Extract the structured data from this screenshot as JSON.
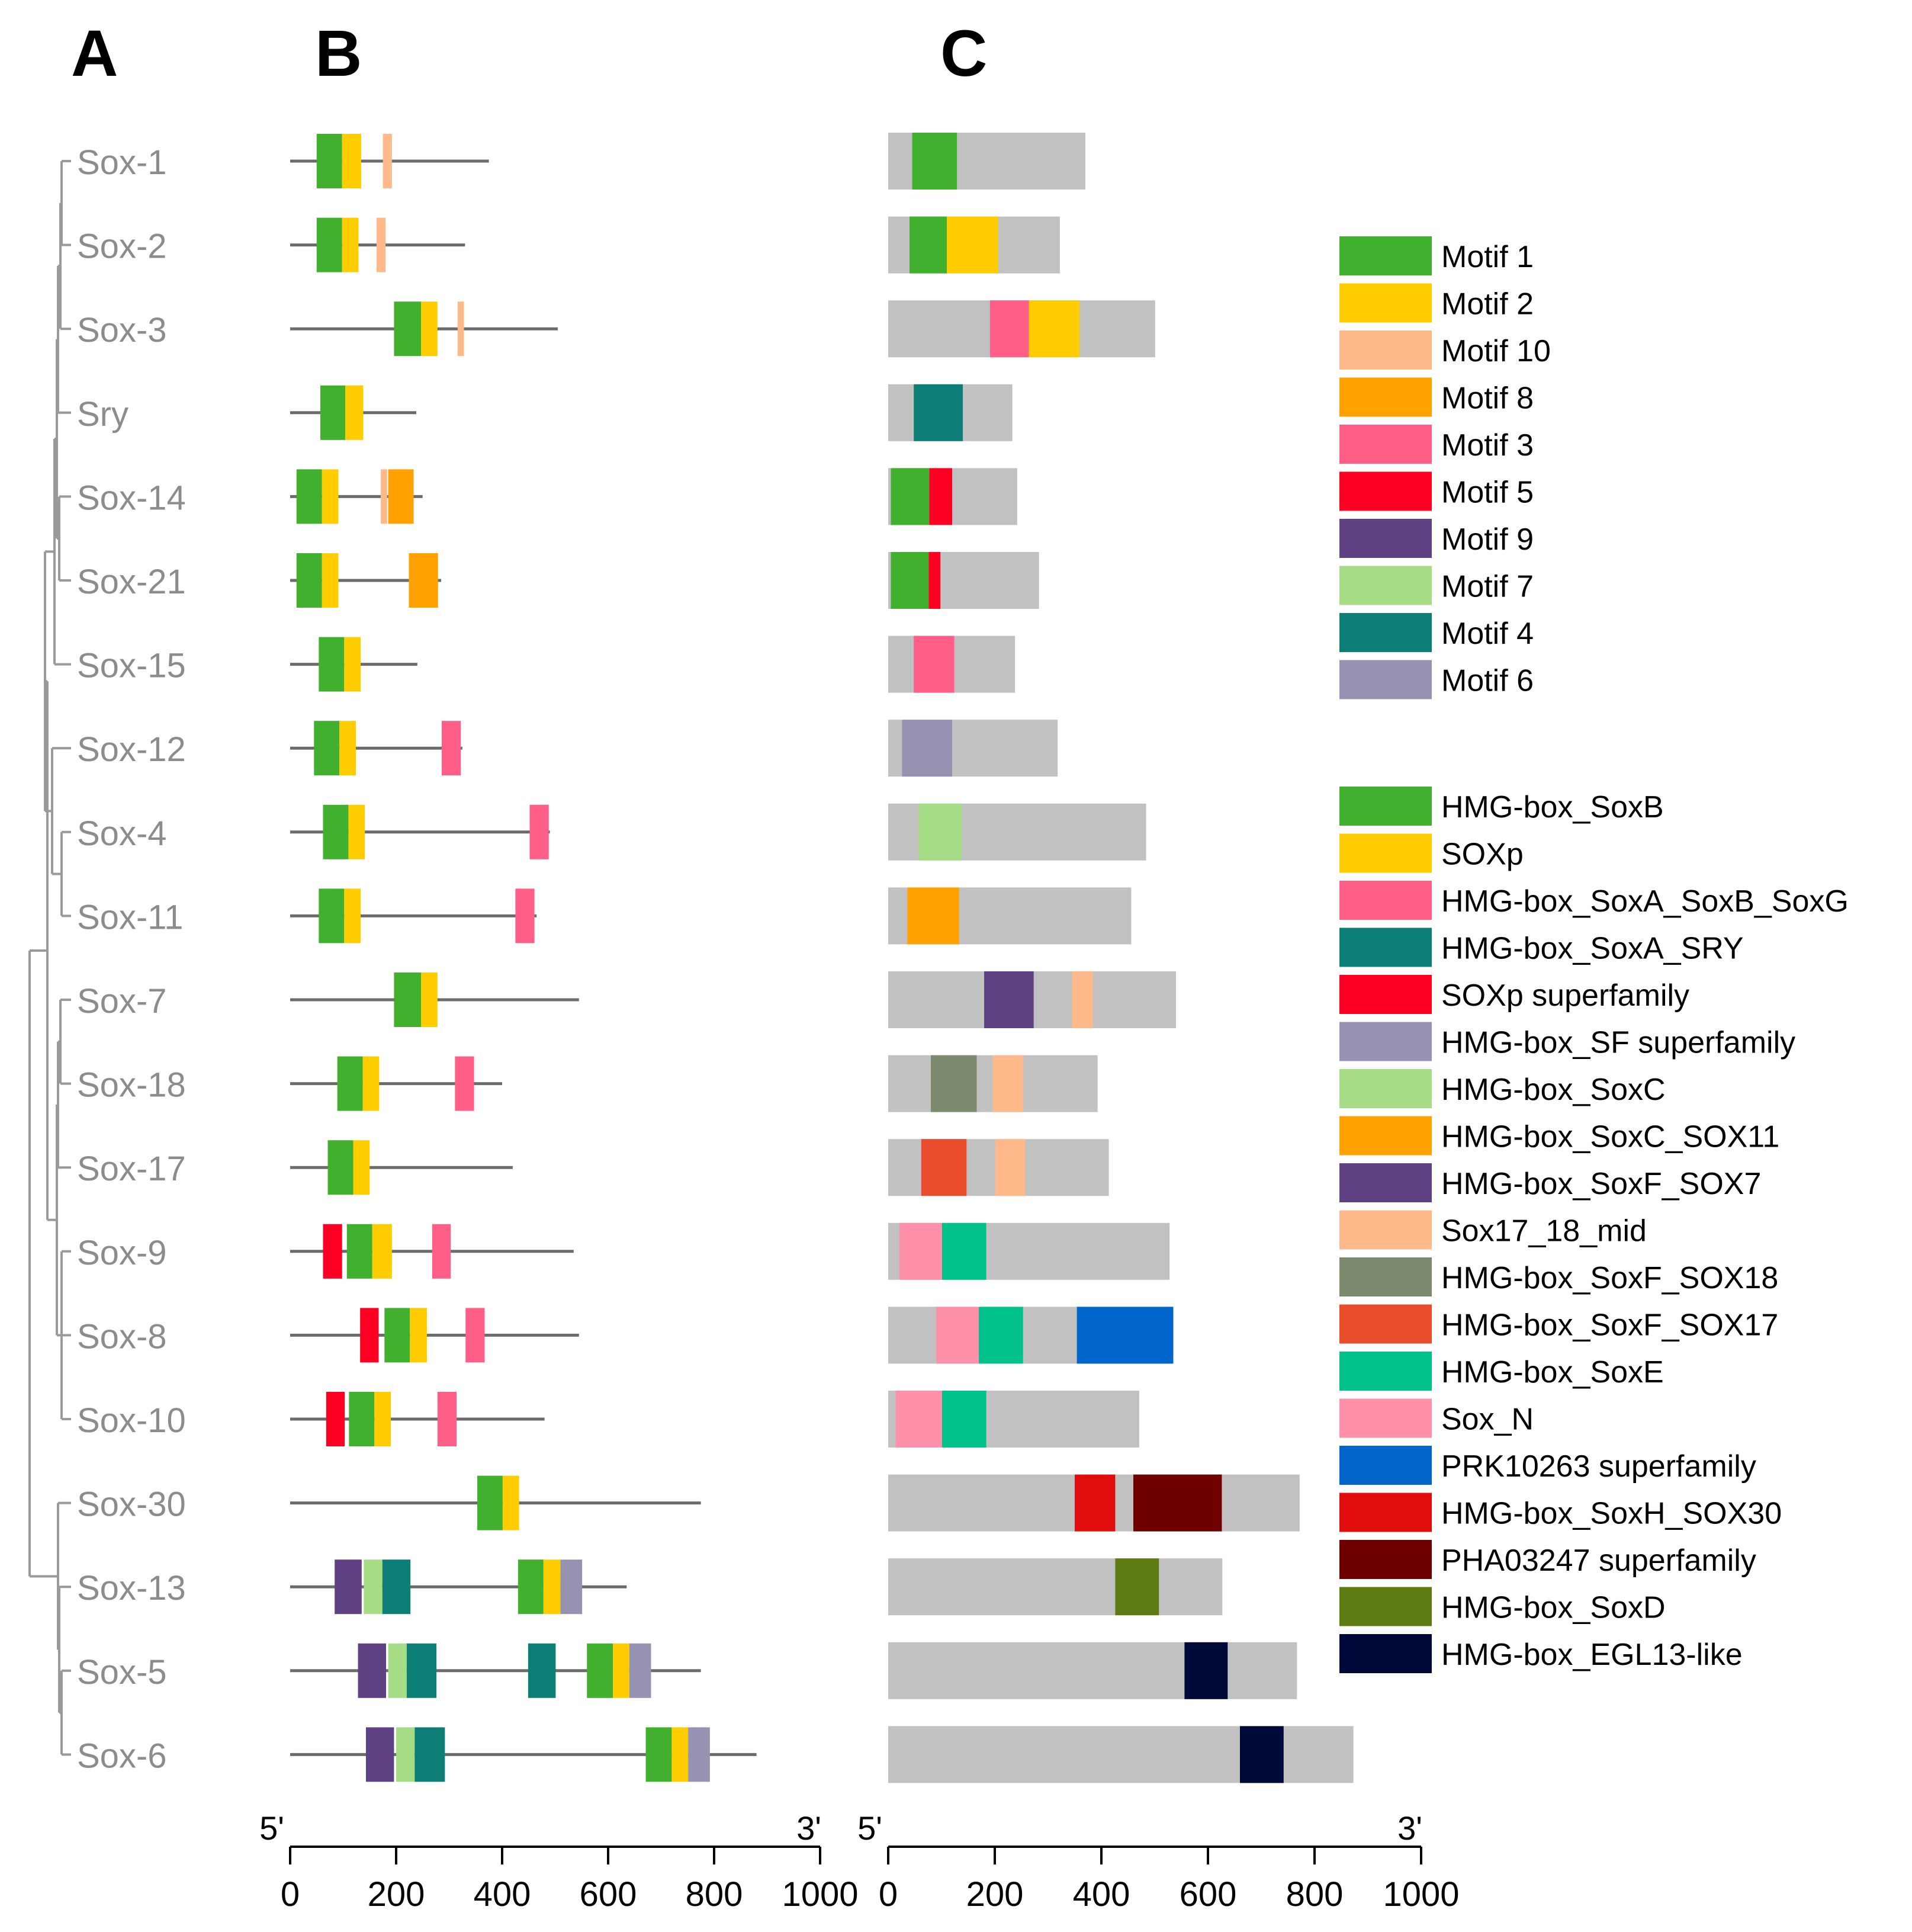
{
  "panels": {
    "a": "A",
    "b": "B",
    "c": "C"
  },
  "genes": [
    "Sox-1",
    "Sox-2",
    "Sox-3",
    "Sry",
    "Sox-14",
    "Sox-21",
    "Sox-15",
    "Sox-12",
    "Sox-4",
    "Sox-11",
    "Sox-7",
    "Sox-18",
    "Sox-17",
    "Sox-9",
    "Sox-8",
    "Sox-10",
    "Sox-30",
    "Sox-13",
    "Sox-5",
    "Sox-6"
  ],
  "colors": {
    "Motif 1": "#41b02f",
    "Motif 2": "#ffcc00",
    "Motif 10": "#ffb98a",
    "Motif 8": "#ffa100",
    "Motif 3": "#ff5e86",
    "Motif 5": "#ff0025",
    "Motif 9": "#5f4184",
    "Motif 7": "#a6dc86",
    "Motif 4": "#0d7e76",
    "Motif 6": "#9892b2",
    "HMG-box_SoxB": "#41b02f",
    "SOXp": "#ffcc00",
    "HMG-box_SoxA_SoxB_SoxG": "#ff5e86",
    "HMG-box_SoxA_SRY": "#0d7e76",
    "SOXp superfamily": "#ff0025",
    "HMG-box_SF superfamily": "#9892b2",
    "HMG-box_SoxC": "#a6dc86",
    "HMG-box_SoxC_SOX11": "#ffa100",
    "HMG-box_SoxF_SOX7": "#5f4184",
    "Sox17_18_mid": "#ffb98a",
    "HMG-box_SoxF_SOX18": "#7c8a6e",
    "HMG-box_SoxF_SOX17": "#ea4d2b",
    "HMG-box_SoxE": "#00c28a",
    "Sox_N": "#ff90aa",
    "PRK10263 superfamily": "#0066cc",
    "HMG-box_SoxH_SOX30": "#e10c0c",
    "PHA03247 superfamily": "#6e0000",
    "HMG-box_SoxD": "#5c7c13",
    "HMG-box_EGL13-like": "#000a38",
    "protein_bar": "#c1c1c1",
    "line": "#6b6b6b",
    "tree": "#9a9a9a",
    "gene_label": "#8c8c8c"
  },
  "motif_legend": [
    "Motif 1",
    "Motif 2",
    "Motif 10",
    "Motif 8",
    "Motif 3",
    "Motif 5",
    "Motif 9",
    "Motif 7",
    "Motif 4",
    "Motif 6"
  ],
  "domain_legend": [
    "HMG-box_SoxB",
    "SOXp",
    "HMG-box_SoxA_SoxB_SoxG",
    "HMG-box_SoxA_SRY",
    "SOXp superfamily",
    "HMG-box_SF superfamily",
    "HMG-box_SoxC",
    "HMG-box_SoxC_SOX11",
    "HMG-box_SoxF_SOX7",
    "Sox17_18_mid",
    "HMG-box_SoxF_SOX18",
    "HMG-box_SoxF_SOX17",
    "HMG-box_SoxE",
    "Sox_N",
    "PRK10263 superfamily",
    "HMG-box_SoxH_SOX30",
    "PHA03247 superfamily",
    "HMG-box_SoxD",
    "HMG-box_EGL13-like"
  ],
  "axis_b": {
    "ticks": [
      0,
      200,
      400,
      600,
      800,
      1000
    ],
    "left_label": "5'",
    "right_label": "3'"
  },
  "axis_c": {
    "ticks": [
      0,
      200,
      400,
      600,
      800,
      1000
    ],
    "left_label": "5'",
    "right_label": "3'"
  },
  "motif_tracks": [
    {
      "length": 375,
      "motifs": [
        {
          "name": "Motif 1",
          "start": 50,
          "end": 98
        },
        {
          "name": "Motif 2",
          "start": 98,
          "end": 134
        },
        {
          "name": "Motif 10",
          "start": 175,
          "end": 192
        }
      ]
    },
    {
      "length": 330,
      "motifs": [
        {
          "name": "Motif 1",
          "start": 50,
          "end": 98
        },
        {
          "name": "Motif 2",
          "start": 98,
          "end": 129
        },
        {
          "name": "Motif 10",
          "start": 163,
          "end": 180
        }
      ]
    },
    {
      "length": 505,
      "motifs": [
        {
          "name": "Motif 1",
          "start": 196,
          "end": 247
        },
        {
          "name": "Motif 2",
          "start": 247,
          "end": 278
        },
        {
          "name": "Motif 10",
          "start": 316,
          "end": 328
        }
      ]
    },
    {
      "length": 238,
      "motifs": [
        {
          "name": "Motif 1",
          "start": 57,
          "end": 104
        },
        {
          "name": "Motif 2",
          "start": 104,
          "end": 138
        }
      ]
    },
    {
      "length": 250,
      "motifs": [
        {
          "name": "Motif 1",
          "start": 12,
          "end": 60
        },
        {
          "name": "Motif 2",
          "start": 60,
          "end": 91
        },
        {
          "name": "Motif 10",
          "start": 171,
          "end": 183
        },
        {
          "name": "Motif 8",
          "start": 185,
          "end": 233
        }
      ]
    },
    {
      "length": 285,
      "motifs": [
        {
          "name": "Motif 1",
          "start": 12,
          "end": 60
        },
        {
          "name": "Motif 2",
          "start": 60,
          "end": 91
        },
        {
          "name": "Motif 8",
          "start": 224,
          "end": 279
        }
      ]
    },
    {
      "length": 240,
      "motifs": [
        {
          "name": "Motif 1",
          "start": 54,
          "end": 102
        },
        {
          "name": "Motif 2",
          "start": 102,
          "end": 133
        }
      ]
    },
    {
      "length": 325,
      "motifs": [
        {
          "name": "Motif 1",
          "start": 45,
          "end": 93
        },
        {
          "name": "Motif 2",
          "start": 93,
          "end": 124
        },
        {
          "name": "Motif 3",
          "start": 286,
          "end": 322
        }
      ]
    },
    {
      "length": 490,
      "motifs": [
        {
          "name": "Motif 1",
          "start": 62,
          "end": 110
        },
        {
          "name": "Motif 2",
          "start": 110,
          "end": 141
        },
        {
          "name": "Motif 3",
          "start": 452,
          "end": 488
        }
      ]
    },
    {
      "length": 465,
      "motifs": [
        {
          "name": "Motif 1",
          "start": 54,
          "end": 102
        },
        {
          "name": "Motif 2",
          "start": 102,
          "end": 133
        },
        {
          "name": "Motif 3",
          "start": 425,
          "end": 461
        }
      ]
    },
    {
      "length": 545,
      "motifs": [
        {
          "name": "Motif 1",
          "start": 196,
          "end": 247
        },
        {
          "name": "Motif 2",
          "start": 247,
          "end": 278
        }
      ]
    },
    {
      "length": 400,
      "motifs": [
        {
          "name": "Motif 1",
          "start": 89,
          "end": 137
        },
        {
          "name": "Motif 2",
          "start": 137,
          "end": 168
        },
        {
          "name": "Motif 3",
          "start": 311,
          "end": 347
        }
      ]
    },
    {
      "length": 420,
      "motifs": [
        {
          "name": "Motif 1",
          "start": 71,
          "end": 119
        },
        {
          "name": "Motif 2",
          "start": 119,
          "end": 150
        }
      ]
    },
    {
      "length": 535,
      "motifs": [
        {
          "name": "Motif 5",
          "start": 62,
          "end": 98
        },
        {
          "name": "Motif 1",
          "start": 107,
          "end": 155
        },
        {
          "name": "Motif 2",
          "start": 155,
          "end": 192
        },
        {
          "name": "Motif 3",
          "start": 268,
          "end": 303
        }
      ]
    },
    {
      "length": 545,
      "motifs": [
        {
          "name": "Motif 5",
          "start": 132,
          "end": 167
        },
        {
          "name": "Motif 1",
          "start": 178,
          "end": 226
        },
        {
          "name": "Motif 2",
          "start": 226,
          "end": 258
        },
        {
          "name": "Motif 3",
          "start": 331,
          "end": 367
        }
      ]
    },
    {
      "length": 480,
      "motifs": [
        {
          "name": "Motif 5",
          "start": 68,
          "end": 103
        },
        {
          "name": "Motif 1",
          "start": 111,
          "end": 159
        },
        {
          "name": "Motif 2",
          "start": 159,
          "end": 190
        },
        {
          "name": "Motif 3",
          "start": 278,
          "end": 314
        }
      ]
    },
    {
      "length": 775,
      "motifs": [
        {
          "name": "Motif 1",
          "start": 353,
          "end": 401
        },
        {
          "name": "Motif 2",
          "start": 401,
          "end": 432
        }
      ]
    },
    {
      "length": 635,
      "motifs": [
        {
          "name": "Motif 9",
          "start": 84,
          "end": 135
        },
        {
          "name": "Motif 7",
          "start": 139,
          "end": 174
        },
        {
          "name": "Motif 4",
          "start": 174,
          "end": 227
        },
        {
          "name": "Motif 1",
          "start": 430,
          "end": 478
        },
        {
          "name": "Motif 2",
          "start": 478,
          "end": 510
        },
        {
          "name": "Motif 6",
          "start": 510,
          "end": 551
        }
      ]
    },
    {
      "length": 775,
      "motifs": [
        {
          "name": "Motif 9",
          "start": 128,
          "end": 181
        },
        {
          "name": "Motif 7",
          "start": 185,
          "end": 220
        },
        {
          "name": "Motif 4",
          "start": 220,
          "end": 276
        },
        {
          "name": "Motif 4",
          "start": 449,
          "end": 501
        },
        {
          "name": "Motif 1",
          "start": 560,
          "end": 609
        },
        {
          "name": "Motif 2",
          "start": 609,
          "end": 640
        },
        {
          "name": "Motif 6",
          "start": 640,
          "end": 681
        }
      ]
    },
    {
      "length": 880,
      "motifs": [
        {
          "name": "Motif 9",
          "start": 143,
          "end": 196
        },
        {
          "name": "Motif 7",
          "start": 200,
          "end": 235
        },
        {
          "name": "Motif 4",
          "start": 235,
          "end": 292
        },
        {
          "name": "Motif 1",
          "start": 671,
          "end": 720
        },
        {
          "name": "Motif 2",
          "start": 720,
          "end": 751
        },
        {
          "name": "Motif 6",
          "start": 751,
          "end": 792
        }
      ]
    }
  ],
  "domain_tracks": [
    {
      "length": 370,
      "domains": [
        {
          "name": "HMG-box_SoxB",
          "start": 45,
          "end": 129
        }
      ]
    },
    {
      "length": 322,
      "domains": [
        {
          "name": "HMG-box_SoxB",
          "start": 40,
          "end": 110
        },
        {
          "name": "SOXp",
          "start": 110,
          "end": 206
        }
      ]
    },
    {
      "length": 501,
      "domains": [
        {
          "name": "HMG-box_SoxA_SoxB_SoxG",
          "start": 191,
          "end": 264
        },
        {
          "name": "SOXp",
          "start": 264,
          "end": 359
        }
      ]
    },
    {
      "length": 233,
      "domains": [
        {
          "name": "HMG-box_SoxA_SRY",
          "start": 48,
          "end": 140
        }
      ]
    },
    {
      "length": 242,
      "domains": [
        {
          "name": "HMG-box_SoxB",
          "start": 5,
          "end": 77
        },
        {
          "name": "SOXp superfamily",
          "start": 77,
          "end": 120
        }
      ]
    },
    {
      "length": 283,
      "domains": [
        {
          "name": "HMG-box_SoxB",
          "start": 5,
          "end": 76
        },
        {
          "name": "SOXp superfamily",
          "start": 76,
          "end": 98
        }
      ]
    },
    {
      "length": 238,
      "domains": [
        {
          "name": "HMG-box_SoxA_SoxB_SoxG",
          "start": 48,
          "end": 124
        }
      ]
    },
    {
      "length": 318,
      "domains": [
        {
          "name": "HMG-box_SF superfamily",
          "start": 26,
          "end": 120
        }
      ]
    },
    {
      "length": 484,
      "domains": [
        {
          "name": "HMG-box_SoxC",
          "start": 57,
          "end": 138
        }
      ]
    },
    {
      "length": 456,
      "domains": [
        {
          "name": "HMG-box_SoxC_SOX11",
          "start": 36,
          "end": 133
        }
      ]
    },
    {
      "length": 540,
      "domains": [
        {
          "name": "HMG-box_SoxF_SOX7",
          "start": 180,
          "end": 273
        },
        {
          "name": "Sox17_18_mid",
          "start": 345,
          "end": 384
        }
      ]
    },
    {
      "length": 393,
      "domains": [
        {
          "name": "HMG-box_SoxF_SOX18",
          "start": 80,
          "end": 166
        },
        {
          "name": "Sox17_18_mid",
          "start": 196,
          "end": 253
        }
      ]
    },
    {
      "length": 414,
      "domains": [
        {
          "name": "HMG-box_SoxF_SOX17",
          "start": 62,
          "end": 147
        },
        {
          "name": "Sox17_18_mid",
          "start": 201,
          "end": 257
        }
      ]
    },
    {
      "length": 528,
      "domains": [
        {
          "name": "Sox_N",
          "start": 21,
          "end": 101
        },
        {
          "name": "HMG-box_SoxE",
          "start": 101,
          "end": 184
        }
      ]
    },
    {
      "length": 535,
      "domains": [
        {
          "name": "Sox_N",
          "start": 90,
          "end": 170
        },
        {
          "name": "HMG-box_SoxE",
          "start": 170,
          "end": 253
        },
        {
          "name": "PRK10263 superfamily",
          "start": 354,
          "end": 535
        }
      ]
    },
    {
      "length": 471,
      "domains": [
        {
          "name": "Sox_N",
          "start": 14,
          "end": 101
        },
        {
          "name": "HMG-box_SoxE",
          "start": 101,
          "end": 184
        }
      ]
    },
    {
      "length": 772,
      "domains": [
        {
          "name": "HMG-box_SoxH_SOX30",
          "start": 350,
          "end": 426
        },
        {
          "name": "PHA03247 superfamily",
          "start": 460,
          "end": 626
        }
      ]
    },
    {
      "length": 627,
      "domains": [
        {
          "name": "HMG-box_SoxD",
          "start": 426,
          "end": 508
        }
      ]
    },
    {
      "length": 767,
      "domains": [
        {
          "name": "HMG-box_EGL13-like",
          "start": 556,
          "end": 637
        }
      ]
    },
    {
      "length": 873,
      "domains": [
        {
          "name": "HMG-box_EGL13-like",
          "start": 660,
          "end": 742
        }
      ]
    }
  ]
}
